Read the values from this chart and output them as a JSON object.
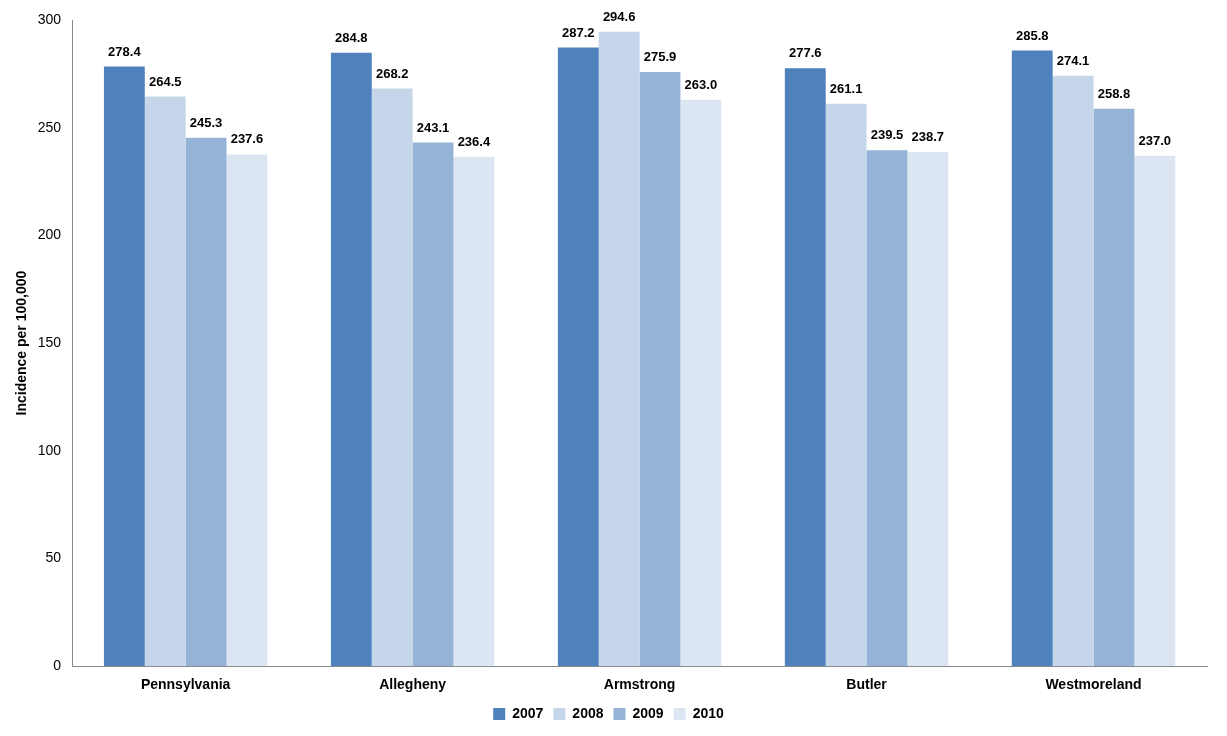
{
  "chart_data": {
    "type": "bar",
    "ylabel": "Incidence per 100,000",
    "categories": [
      "Pennsylvania",
      "Allegheny",
      "Armstrong",
      "Butler",
      "Westmoreland"
    ],
    "series": [
      {
        "name": "2007",
        "color": "#4f81bd",
        "values": [
          278.4,
          284.8,
          287.2,
          277.6,
          285.8
        ],
        "value_labels": [
          "278.4",
          "284.8",
          "287.2",
          "277.6",
          "285.8"
        ]
      },
      {
        "name": "2008",
        "color": "#c5d5ea",
        "values": [
          264.5,
          268.2,
          294.6,
          261.1,
          274.1
        ],
        "value_labels": [
          "264.5",
          "268.2",
          "294.6",
          "261.1",
          "274.1"
        ]
      },
      {
        "name": "2009",
        "color": "#95b3d7",
        "values": [
          245.3,
          243.1,
          275.9,
          239.5,
          258.8
        ],
        "value_labels": [
          "245.3",
          "243.1",
          "275.9",
          "239.5",
          "258.8"
        ]
      },
      {
        "name": "2010",
        "color": "#dce6f2",
        "values": [
          237.6,
          236.4,
          263.0,
          238.7,
          237.0
        ],
        "value_labels": [
          "237.6",
          "236.4",
          "263.0",
          "238.7",
          "237.0"
        ]
      }
    ],
    "ylim": [
      0,
      300
    ],
    "yticks": [
      0,
      50,
      100,
      150,
      200,
      250,
      300
    ],
    "grid": false,
    "legend": "bottom"
  }
}
